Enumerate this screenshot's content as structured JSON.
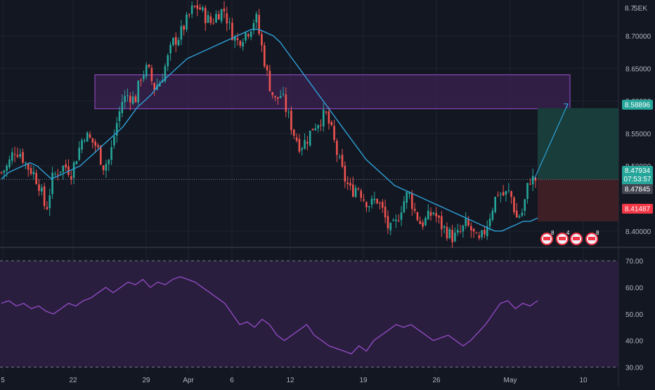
{
  "colors": {
    "background": "#131722",
    "grid": "#1f2330",
    "up": "#26a69a",
    "down": "#ef5350",
    "ma_line": "#2e9fd6",
    "rsi_line": "#9c4fd0",
    "rsi_band": "#2a1e3f",
    "zone_fill": "#3b2250",
    "zone_border": "#9c4fd0",
    "target_fill": "#183d3b",
    "stop_fill": "#3e1f26",
    "axis_text": "#b2b5be",
    "tag_up": "#26a69a",
    "tag_down": "#f23645",
    "projection": "#2e9fd6"
  },
  "header": {
    "currency": "SEK",
    "top_price": "8.7"
  },
  "chart_data": [
    {
      "type": "candlestick",
      "title": "",
      "currency": "SEK",
      "x_labels": [
        "5",
        "22",
        "29",
        "Apr",
        "6",
        "12",
        "19",
        "26",
        "May",
        "10"
      ],
      "y_ticks": [
        "8.70000",
        "8.65000",
        "8.60000",
        "8.55000",
        "8.50000",
        "8.40000"
      ],
      "ylim": [
        8.375,
        8.755
      ],
      "close_path": [
        8.49,
        8.5,
        8.525,
        8.52,
        8.5,
        8.49,
        8.47,
        8.43,
        8.48,
        8.495,
        8.5,
        8.49,
        8.52,
        8.55,
        8.54,
        8.53,
        8.5,
        8.51,
        8.56,
        8.6,
        8.61,
        8.6,
        8.64,
        8.65,
        8.62,
        8.63,
        8.66,
        8.69,
        8.7,
        8.72,
        8.74,
        8.745,
        8.73,
        8.72,
        8.735,
        8.74,
        8.71,
        8.69,
        8.7,
        8.71,
        8.73,
        8.68,
        8.63,
        8.6,
        8.61,
        8.58,
        8.55,
        8.53,
        8.54,
        8.56,
        8.57,
        8.58,
        8.55,
        8.51,
        8.48,
        8.46,
        8.47,
        8.45,
        8.44,
        8.45,
        8.43,
        8.4,
        8.41,
        8.44,
        8.46,
        8.43,
        8.41,
        8.42,
        8.43,
        8.41,
        8.4,
        8.39,
        8.395,
        8.41,
        8.4,
        8.38,
        8.4,
        8.43,
        8.46,
        8.455,
        8.46,
        8.42,
        8.43,
        8.48,
        8.479
      ],
      "ma_path": [
        8.48,
        8.49,
        8.495,
        8.5,
        8.505,
        8.5,
        8.49,
        8.48,
        8.485,
        8.49,
        8.495,
        8.5,
        8.51,
        8.52,
        8.53,
        8.54,
        8.55,
        8.56,
        8.575,
        8.59,
        8.6,
        8.61,
        8.625,
        8.635,
        8.645,
        8.655,
        8.665,
        8.67,
        8.675,
        8.68,
        8.685,
        8.69,
        8.695,
        8.7,
        8.705,
        8.71,
        8.71,
        8.705,
        8.7,
        8.69,
        8.675,
        8.66,
        8.645,
        8.63,
        8.615,
        8.6,
        8.585,
        8.57,
        8.555,
        8.54,
        8.525,
        8.51,
        8.5,
        8.49,
        8.48,
        8.47,
        8.465,
        8.46,
        8.455,
        8.45,
        8.445,
        8.44,
        8.435,
        8.43,
        8.425,
        8.42,
        8.415,
        8.41,
        8.405,
        8.4,
        8.4,
        8.405,
        8.41,
        8.415,
        8.415,
        8.42
      ],
      "support_zone": {
        "from": 8.588,
        "to": 8.64
      },
      "position": {
        "entry": 8.47934,
        "target": 8.58896,
        "stop": 8.41487
      },
      "price_labels": {
        "target": "8.58896",
        "last": "8.47934",
        "countdown": "07:53:57",
        "prev_close": "8.47845",
        "stop": "8.41487"
      },
      "event_badges": [
        "8",
        "4",
        "",
        "8"
      ]
    },
    {
      "type": "line",
      "title": "",
      "y_ticks": [
        "70.00",
        "60.00",
        "50.00",
        "40.00",
        "30.00"
      ],
      "ylim": [
        28,
        74
      ],
      "levels": [
        70,
        30
      ],
      "values": [
        54,
        55,
        53,
        54,
        52,
        53,
        51,
        50,
        52,
        54,
        53,
        55,
        56,
        58,
        60,
        58,
        60,
        62,
        61,
        63,
        60,
        62,
        61,
        63,
        64,
        63,
        62,
        60,
        58,
        56,
        54,
        50,
        46,
        47,
        45,
        48,
        46,
        42,
        40,
        42,
        44,
        46,
        42,
        40,
        38,
        37,
        36,
        35,
        38,
        36,
        40,
        42,
        44,
        46,
        45,
        46,
        44,
        42,
        40,
        41,
        42,
        40,
        38,
        40,
        43,
        46,
        50,
        54,
        55,
        52,
        54,
        53,
        55
      ]
    }
  ]
}
